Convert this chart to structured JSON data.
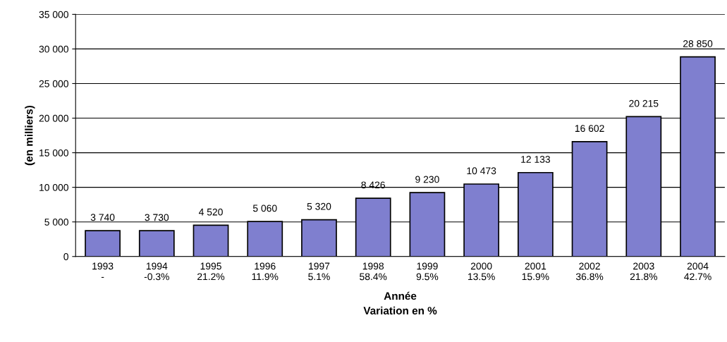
{
  "chart_data": {
    "type": "bar",
    "categories": [
      "1993\n-",
      "1994\n-0.3%",
      "1995\n21.2%",
      "1996\n11.9%",
      "1997\n5.1%",
      "1998\n58.4%",
      "1999\n9.5%",
      "2000\n13.5%",
      "2001\n15.9%",
      "2002\n36.8%",
      "2003\n21.8%",
      "2004\n42.7%"
    ],
    "values": [
      3740,
      3730,
      4520,
      5060,
      5320,
      8426,
      9230,
      10473,
      12133,
      16602,
      20215,
      28850
    ],
    "value_labels": [
      "3 740",
      "3 730",
      "4 520",
      "5 060",
      "5 320",
      "8 426",
      "9 230",
      "10 473",
      "12 133",
      "16 602",
      "20 215",
      "28 850"
    ],
    "color": "#7f7fcf",
    "xlabel": "Année\nVariation en %",
    "ylabel": "(en milliers)",
    "ylim": [
      0,
      35000
    ],
    "yticks": [
      {
        "value": 0,
        "label": "0"
      },
      {
        "value": 5000,
        "label": "5 000"
      },
      {
        "value": 10000,
        "label": "10 000"
      },
      {
        "value": 15000,
        "label": "15 000"
      },
      {
        "value": 20000,
        "label": "20 000"
      },
      {
        "value": 25000,
        "label": "25 000"
      },
      {
        "value": 30000,
        "label": "30 000"
      },
      {
        "value": 35000,
        "label": "35 000"
      }
    ],
    "grid": "y"
  }
}
